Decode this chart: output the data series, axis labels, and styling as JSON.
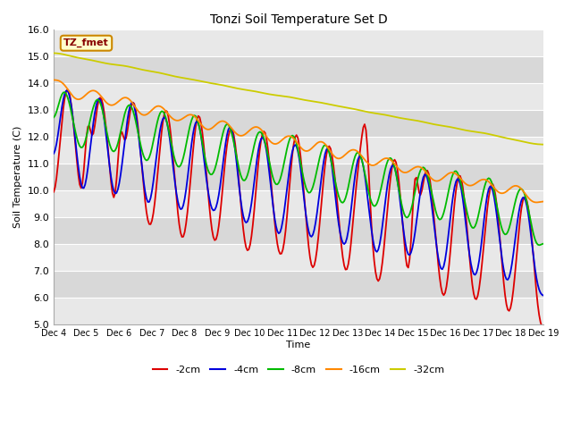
{
  "title": "Tonzi Soil Temperature Set D",
  "xlabel": "Time",
  "ylabel": "Soil Temperature (C)",
  "ylim": [
    5.0,
    16.0
  ],
  "yticks": [
    5.0,
    6.0,
    7.0,
    8.0,
    9.0,
    10.0,
    11.0,
    12.0,
    13.0,
    14.0,
    15.0,
    16.0
  ],
  "xtick_labels": [
    "Dec 4",
    "Dec 5",
    "Dec 6",
    "Dec 7",
    "Dec 8",
    "Dec 9",
    "Dec 10",
    "Dec 11",
    "Dec 12",
    "Dec 13",
    "Dec 14",
    "Dec 15",
    "Dec 16",
    "Dec 17",
    "Dec 18",
    "Dec 19"
  ],
  "legend_label": "TZ_fmet",
  "plot_bg_color": "#e8e8e8",
  "alt_band_color": "#d8d8d8",
  "colors": {
    "-2cm": "#dd0000",
    "-4cm": "#0000dd",
    "-8cm": "#00bb00",
    "-16cm": "#ff8800",
    "-32cm": "#cccc00"
  },
  "n_days": 15,
  "pts_per_day": 24,
  "seed": 42
}
